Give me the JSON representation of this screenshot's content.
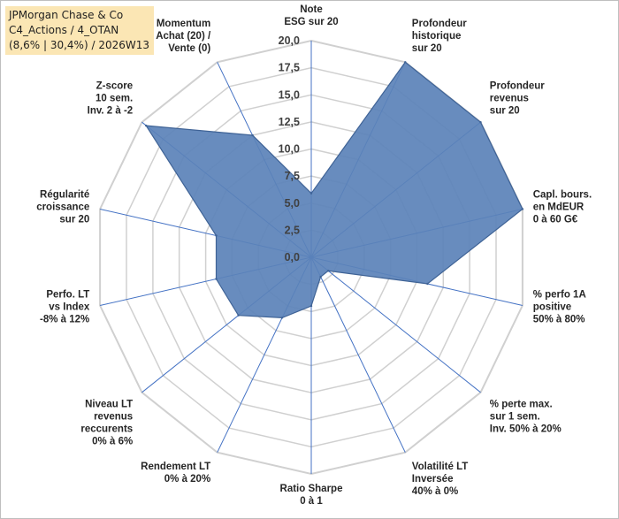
{
  "header": {
    "line1": "JPMorgan Chase & Co",
    "line2": "C4_Actions / 4_OTAN",
    "line3": "(8,6% | 30,4%) / 2026W13"
  },
  "colors": {
    "fill": "#5b82b8",
    "stroke": "#3f6396",
    "grid": "#d0d0d0",
    "axis": "#4472c4",
    "title_bg": "#fbe6b4"
  },
  "chart_data": {
    "type": "radar",
    "rlim": [
      0,
      20
    ],
    "ticks": [
      "0,0",
      "2,5",
      "5,0",
      "7,5",
      "10,0",
      "12,5",
      "15,0",
      "17,5",
      "20,0"
    ],
    "tick_values": [
      0,
      2.5,
      5,
      7.5,
      10,
      12.5,
      15,
      17.5,
      20
    ],
    "axes": [
      {
        "label": [
          "Note",
          "ESG sur 20"
        ],
        "value": 5.9
      },
      {
        "label": [
          "Profondeur",
          "historique",
          "sur 20"
        ],
        "value": 20
      },
      {
        "label": [
          "Profondeur",
          "revenus",
          "sur 20"
        ],
        "value": 20
      },
      {
        "label": [
          "Capl. bours.",
          "en MdEUR",
          "0 à 60 G€"
        ],
        "value": 20
      },
      {
        "label": [
          "% perfo 1A",
          "positive",
          "50% à 80%"
        ],
        "value": 11
      },
      {
        "label": [
          "% perte max.",
          "sur 1 sem.",
          "Inv. 50% à 20%"
        ],
        "value": 2
      },
      {
        "label": [
          "Volatilité LT",
          "Inversée",
          "40% à 0%"
        ],
        "value": 2
      },
      {
        "label": [
          "Ratio Sharpe",
          "0 à 1"
        ],
        "value": 4.5
      },
      {
        "label": [
          "Rendement LT",
          "0% à 20%"
        ],
        "value": 6.2
      },
      {
        "label": [
          "Niveau LT",
          "revenus",
          "reccurents",
          "0% à 6%"
        ],
        "value": 8.6
      },
      {
        "label": [
          "Perfo. LT",
          "vs Index",
          "-8% à 12%"
        ],
        "value": 9
      },
      {
        "label": [
          "Régularité",
          "croissance",
          "sur 20"
        ],
        "value": 9
      },
      {
        "label": [
          "Z-score",
          "10 sem.",
          "Inv. 2 à -2"
        ],
        "value": 19.5
      },
      {
        "label": [
          "Momentum",
          "Achat (20) /",
          "Vente (0)"
        ],
        "value": 12.5
      }
    ]
  }
}
